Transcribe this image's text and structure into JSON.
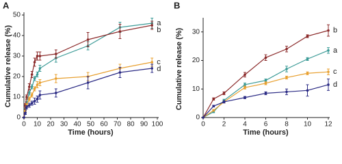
{
  "chart_data": [
    {
      "type": "line",
      "label": "A",
      "xlabel": "Time (hours)",
      "ylabel": "Cumulative release (%)",
      "x": [
        0,
        1,
        2,
        4,
        6,
        8,
        10,
        12,
        24,
        48,
        72,
        96
      ],
      "xlim": [
        0,
        100
      ],
      "xticks": [
        0,
        10,
        20,
        30,
        40,
        50,
        60,
        70,
        80,
        90,
        100
      ],
      "ylim": [
        0,
        50
      ],
      "yticks": [
        0,
        10,
        20,
        30,
        40,
        50
      ],
      "series": [
        {
          "name": "a",
          "color": "#3a9a96",
          "values": [
            0,
            4,
            7,
            12,
            15,
            19,
            21,
            24,
            29,
            35,
            44,
            46
          ],
          "errors": [
            0,
            0.5,
            0.8,
            1,
            1,
            1,
            1.2,
            1.5,
            2,
            2,
            2.5,
            2.5
          ]
        },
        {
          "name": "b",
          "color": "#8b2a2a",
          "values": [
            0,
            6,
            10,
            15,
            21,
            27,
            30,
            30,
            31,
            38,
            42,
            45
          ],
          "errors": [
            0,
            0.8,
            1,
            1.5,
            1.5,
            2,
            2,
            2,
            2,
            3.5,
            3.5,
            2
          ]
        },
        {
          "name": "c",
          "color": "#e8a030",
          "values": [
            0,
            3,
            6,
            9,
            11,
            14,
            16,
            17,
            19,
            20,
            24,
            27
          ],
          "errors": [
            0,
            0.5,
            0.8,
            1,
            1,
            1,
            1.5,
            1.5,
            2,
            2,
            2,
            2
          ]
        },
        {
          "name": "d",
          "color": "#2a2a84",
          "values": [
            0,
            2,
            5,
            6,
            7,
            8,
            9,
            11,
            12,
            17,
            22,
            24
          ],
          "errors": [
            0,
            0.5,
            0.8,
            1,
            1,
            1.5,
            1.5,
            2,
            2,
            3,
            2.5,
            2
          ]
        }
      ]
    },
    {
      "type": "line",
      "label": "B",
      "xlabel": "Time (hours)",
      "ylabel": "Cumulative release (%)",
      "x": [
        0,
        1,
        2,
        4,
        6,
        8,
        10,
        12
      ],
      "xlim": [
        0,
        12
      ],
      "xticks": [
        0,
        2,
        4,
        6,
        8,
        10,
        12
      ],
      "ylim": [
        0,
        34
      ],
      "yticks": [
        0,
        10,
        20,
        30
      ],
      "series": [
        {
          "name": "b",
          "color": "#8b2a2a",
          "values": [
            0,
            6.5,
            8.5,
            15,
            21,
            24,
            28.5,
            30.5
          ],
          "errors": [
            0,
            0.4,
            0.5,
            0.8,
            1,
            1,
            0.5,
            2
          ]
        },
        {
          "name": "a",
          "color": "#3a9a96",
          "values": [
            0,
            2,
            6,
            11.5,
            13,
            17,
            20.5,
            23.5
          ],
          "errors": [
            0,
            0.3,
            0.4,
            0.6,
            0.5,
            1,
            0.5,
            1
          ]
        },
        {
          "name": "c",
          "color": "#e8a030",
          "values": [
            0,
            2.5,
            5.5,
            10.5,
            12,
            14,
            15.5,
            16
          ],
          "errors": [
            0,
            0.3,
            0.4,
            0.5,
            0.5,
            0.5,
            0.5,
            1
          ]
        },
        {
          "name": "d",
          "color": "#2a2a84",
          "values": [
            0,
            4,
            5.5,
            7,
            8.5,
            9,
            9.5,
            11.5
          ],
          "errors": [
            0,
            0.3,
            0.4,
            0.4,
            0.5,
            1,
            2,
            2
          ]
        }
      ]
    }
  ]
}
